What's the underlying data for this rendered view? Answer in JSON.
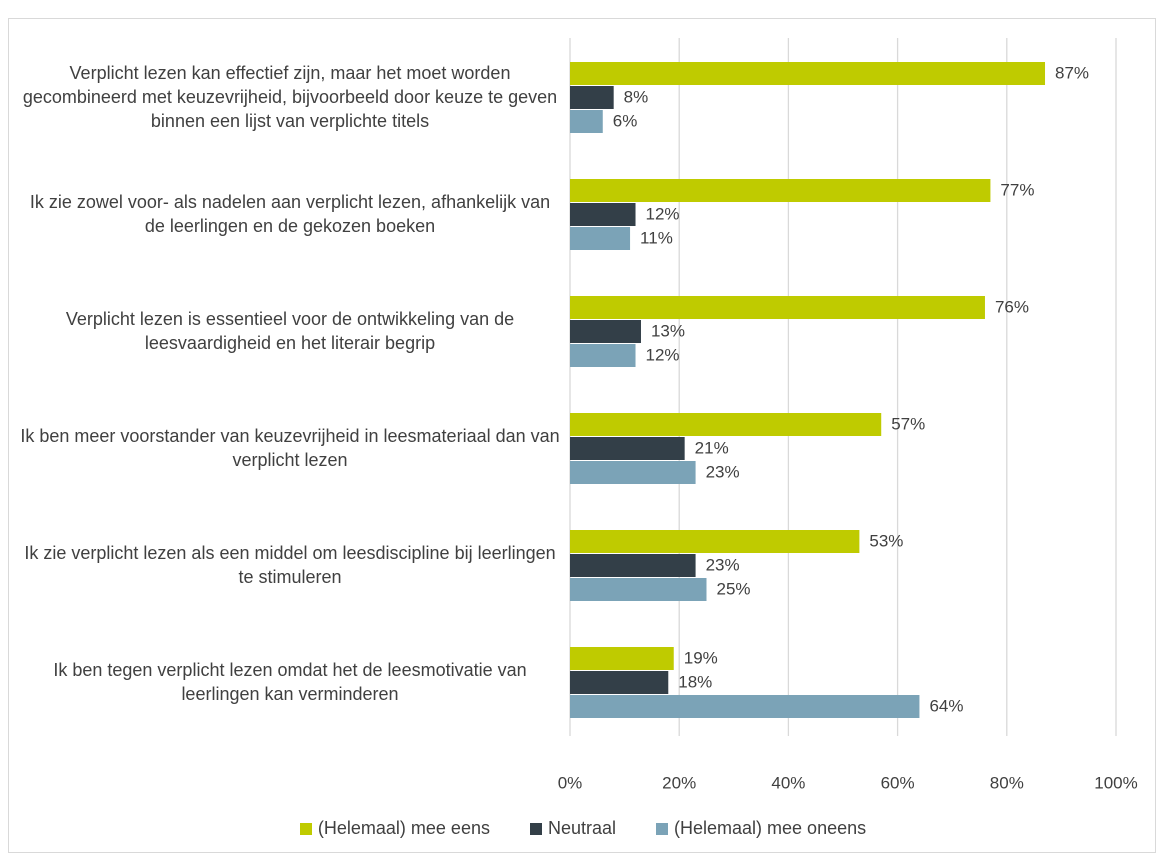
{
  "chart_data": {
    "type": "bar",
    "orientation": "horizontal",
    "categories": [
      "Verplicht lezen kan effectief zijn, maar het moet worden gecombineerd met keuzevrijheid, bijvoorbeeld door keuze te geven binnen een lijst van verplichte titels",
      "Ik zie zowel voor- als nadelen aan verplicht lezen, afhankelijk van de leerlingen en de gekozen boeken",
      "Verplicht lezen is essentieel voor de ontwikkeling van de leesvaardigheid en het literair begrip",
      "Ik ben meer voorstander van keuzevrijheid in leesmateriaal dan van verplicht lezen",
      "Ik zie verplicht lezen als een middel om leesdiscipline bij leerlingen te stimuleren",
      "Ik ben tegen verplicht lezen omdat het de leesmotivatie van leerlingen kan verminderen"
    ],
    "series": [
      {
        "name": "(Helemaal) mee eens",
        "color": "#bfcb00",
        "values": [
          87,
          77,
          76,
          57,
          53,
          19
        ],
        "value_labels": [
          "87%",
          "77%",
          "76%",
          "57%",
          "53%",
          "19%"
        ]
      },
      {
        "name": "Neutraal",
        "color": "#333f48",
        "values": [
          8,
          12,
          13,
          21,
          23,
          18
        ],
        "value_labels": [
          "8%",
          "12%",
          "13%",
          "21%",
          "23%",
          "18%"
        ]
      },
      {
        "name": "(Helemaal) mee oneens",
        "color": "#7ba3b7",
        "values": [
          6,
          11,
          12,
          23,
          25,
          64
        ],
        "value_labels": [
          "6%",
          "11%",
          "12%",
          "23%",
          "25%",
          "64%"
        ]
      }
    ],
    "xlim": [
      0,
      100
    ],
    "xticks": [
      {
        "value": 0,
        "label": "0%"
      },
      {
        "value": 20,
        "label": "20%"
      },
      {
        "value": 40,
        "label": "40%"
      },
      {
        "value": 60,
        "label": "60%"
      },
      {
        "value": 80,
        "label": "80%"
      },
      {
        "value": 100,
        "label": "100%"
      }
    ],
    "grid": true,
    "legend": "bottom"
  }
}
